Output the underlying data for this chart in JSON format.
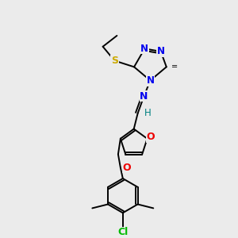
{
  "bg_color": "#ebebeb",
  "bond_color": "#000000",
  "atom_colors": {
    "N": "#0000ee",
    "O": "#ee0000",
    "S": "#ccaa00",
    "Cl": "#00bb00",
    "H": "#008080"
  },
  "figsize": [
    3.0,
    3.0
  ],
  "dpi": 100
}
